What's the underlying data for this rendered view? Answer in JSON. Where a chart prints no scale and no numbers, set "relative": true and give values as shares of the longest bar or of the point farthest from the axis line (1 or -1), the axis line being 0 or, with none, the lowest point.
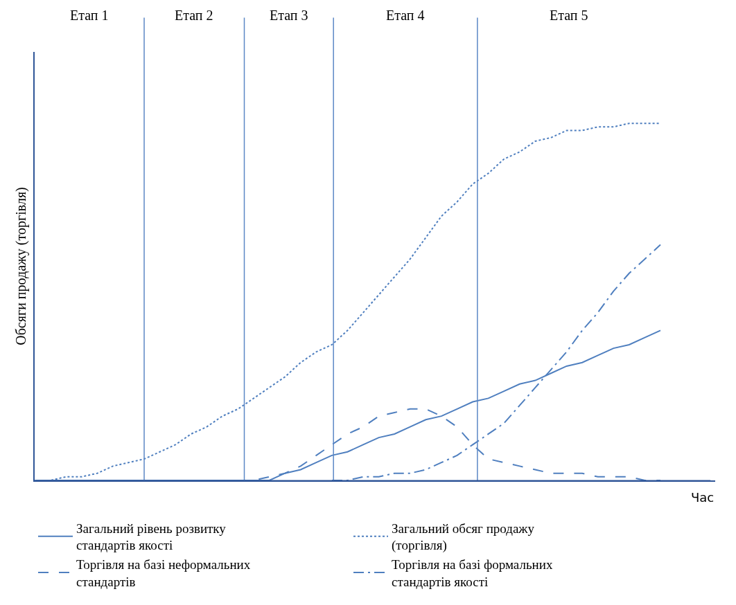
{
  "chart_data": {
    "type": "line",
    "relative": true,
    "xlabel": "Час",
    "ylabel": "Обсяги продажу (торгівля)",
    "categories": [
      null,
      null,
      null,
      null,
      null,
      null,
      null,
      null,
      null,
      null,
      null,
      null,
      null,
      null,
      null,
      null,
      null,
      null,
      null,
      null,
      null,
      null,
      null,
      null,
      null,
      null,
      null,
      null,
      null,
      null,
      null,
      null,
      null,
      null,
      null,
      null,
      null,
      null,
      null,
      null,
      null
    ],
    "series": [
      {
        "name": "Загальний рівень розвитку стандартів якості",
        "color": "#4f7fbf",
        "line_style": "solid",
        "values": [
          0,
          0,
          0,
          0,
          0,
          0,
          0,
          0,
          0,
          0,
          0,
          0,
          0,
          0,
          0,
          0,
          0.02,
          0.03,
          0.05,
          0.07,
          0.08,
          0.1,
          0.12,
          0.13,
          0.15,
          0.17,
          0.18,
          0.2,
          0.22,
          0.23,
          0.25,
          0.27,
          0.28,
          0.3,
          0.32,
          0.33,
          0.35,
          0.37,
          0.38,
          0.4,
          0.42
        ]
      },
      {
        "name": "Загальний обсяг продажу (торгівля)",
        "color": "#4f7fbf",
        "line_style": "dotted",
        "values": [
          0,
          0.0,
          0.01,
          0.01,
          0.02,
          0.04,
          0.05,
          0.06,
          0.08,
          0.1,
          0.13,
          0.15,
          0.18,
          0.2,
          0.23,
          0.26,
          0.29,
          0.33,
          0.36,
          0.38,
          0.42,
          0.47,
          0.52,
          0.57,
          0.62,
          0.68,
          0.74,
          0.78,
          0.83,
          0.86,
          0.9,
          0.92,
          0.95,
          0.96,
          0.98,
          0.98,
          0.99,
          0.99,
          1.0,
          1.0,
          1.0
        ]
      },
      {
        "name": "Торгівля на базі неформальних стандартів",
        "color": "#4f7fbf",
        "line_style": "dashed",
        "values": [
          null,
          null,
          null,
          null,
          null,
          null,
          null,
          null,
          null,
          null,
          null,
          null,
          null,
          0,
          0,
          0.01,
          0.02,
          0.04,
          0.07,
          0.1,
          0.13,
          0.15,
          0.18,
          0.19,
          0.2,
          0.2,
          0.18,
          0.15,
          0.1,
          0.06,
          0.05,
          0.04,
          0.03,
          0.02,
          0.02,
          0.02,
          0.01,
          0.01,
          0.01,
          0,
          0
        ]
      },
      {
        "name": "Торгівля на базі формальних стандартів якості",
        "color": "#4f7fbf",
        "line_style": "dashdot",
        "values": [
          null,
          null,
          null,
          null,
          null,
          null,
          null,
          null,
          null,
          null,
          null,
          null,
          null,
          null,
          null,
          null,
          null,
          null,
          null,
          0,
          0,
          0.01,
          0.01,
          0.02,
          0.02,
          0.03,
          0.05,
          0.07,
          0.1,
          0.13,
          0.16,
          0.21,
          0.26,
          0.31,
          0.36,
          0.42,
          0.47,
          0.53,
          0.58,
          0.62,
          0.66
        ]
      }
    ],
    "annotations": [
      "Етап 1",
      "Етап 2",
      "Етап 3",
      "Етап 4",
      "Етап 5"
    ],
    "legend": "bottom",
    "marker": "none"
  }
}
